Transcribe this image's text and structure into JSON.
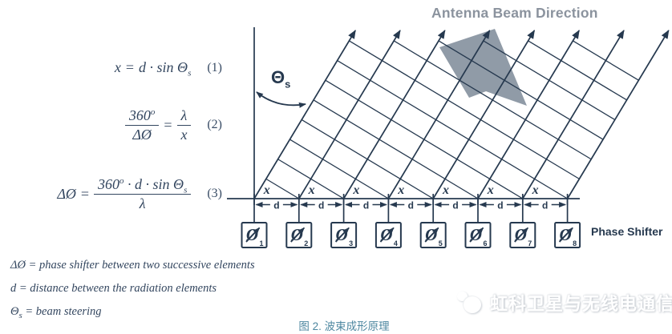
{
  "equations": {
    "eq1": {
      "lhs": "x",
      "eq": "=",
      "rhs_pre": "d · sin Θ",
      "rhs_sub": "s",
      "tag": "(1)"
    },
    "eq2": {
      "f1_num": "360",
      "f1_sup": "o",
      "f1_den": "ΔØ",
      "eq": "=",
      "f2_num": "λ",
      "f2_den": "x",
      "tag": "(2)"
    },
    "eq3": {
      "lhs": "ΔØ",
      "eq": "=",
      "num_pre": "360",
      "num_sup": "o",
      "num_mid": " · d · sin Θ",
      "num_sub": "s",
      "den": "λ",
      "tag": "(3)"
    }
  },
  "definitions": [
    {
      "term": "ΔØ",
      "term_sub": "",
      "desc": "= phase shifter between two successive elements"
    },
    {
      "term": "d",
      "term_sub": "",
      "desc": "= distance between the radiation elements"
    },
    {
      "term": "Θ",
      "term_sub": "s",
      "desc": "= beam steering"
    }
  ],
  "diagram": {
    "beam_direction_label": "Antenna Beam Direction",
    "phase_shifter_label": "Phase Shifter",
    "theta": "Θ",
    "theta_sub": "s",
    "x_label": "x",
    "d_label": "d",
    "phase_symbol": "Ø",
    "element_count": 8,
    "element_numbers": [
      "1",
      "2",
      "3",
      "4",
      "5",
      "6",
      "7",
      "8"
    ],
    "colors": {
      "line": "#26394f",
      "gray_text": "#8b939e",
      "gray_arrow": "#909ba7"
    }
  },
  "caption": "图 2. 波束成形原理",
  "watermark": {
    "text": "虹科卫星与无线电通信"
  }
}
